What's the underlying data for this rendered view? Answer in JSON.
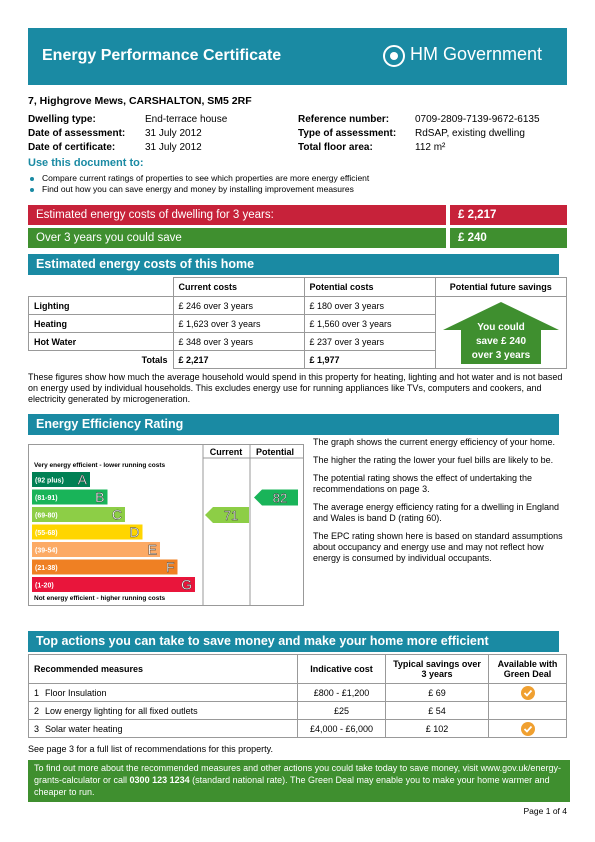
{
  "header": {
    "title": "Energy Performance Certificate",
    "logo": "HM Government"
  },
  "address": "7, Highgrove Mews, CARSHALTON, SM5 2RF",
  "details": [
    {
      "label": "Dwelling type:",
      "value": "End-terrace house"
    },
    {
      "label": "Date of assessment:",
      "value": "31 July 2012"
    },
    {
      "label": "Date of certificate:",
      "value": "31 July 2012"
    },
    {
      "label": "Reference number:",
      "value": "0709-2809-7139-9672-6135"
    },
    {
      "label": "Type of assessment:",
      "value": "RdSAP, existing dwelling"
    },
    {
      "label": "Total floor area:",
      "value": "112 m²"
    }
  ],
  "use": {
    "title": "Use this document to:",
    "bullets": [
      "Compare current ratings of properties to see which properties are more energy efficient",
      "Find out how you can save energy and money by installing improvement measures"
    ]
  },
  "summary": [
    {
      "label": "Estimated energy costs of dwelling for 3 years:",
      "value": "£ 2,217"
    },
    {
      "label": "Over 3 years you could save",
      "value": "£ 240"
    }
  ],
  "estimated": {
    "title": "Estimated energy costs of this home",
    "headers": [
      "Current costs",
      "Potential costs",
      "Potential future savings"
    ],
    "rows": [
      [
        "Lighting",
        "£ 246 over 3 years",
        "£ 180 over 3 years"
      ],
      [
        "Heating",
        "£ 1,623 over 3 years",
        "£ 1,560 over 3 years"
      ],
      [
        "Hot Water",
        "£ 348 over 3 years",
        "£ 237 over 3 years"
      ]
    ],
    "totals": [
      "Totals",
      "£ 2,217",
      "£ 1,977"
    ],
    "savings_badge": [
      "You could",
      "save £ 240",
      "over 3 years"
    ],
    "note": "These figures show how much the average household would spend in this property for heating, lighting and hot water and is not based on energy used by individual households. This excludes energy use for running appliances like TVs, computers and cookers, and electricity generated by microgeneration."
  },
  "rating": {
    "title": "Energy Efficiency Rating",
    "columns": [
      "Current",
      "Potential"
    ],
    "top_note": "Very energy efficient - lower running costs",
    "bottom_note": "Not energy efficient - higher running costs",
    "bands": [
      {
        "range": "(92 plus)",
        "letter": "A"
      },
      {
        "range": "(81-91)",
        "letter": "B"
      },
      {
        "range": "(69-80)",
        "letter": "C"
      },
      {
        "range": "(55-68)",
        "letter": "D"
      },
      {
        "range": "(39-54)",
        "letter": "E"
      },
      {
        "range": "(21-38)",
        "letter": "F"
      },
      {
        "range": "(1-20)",
        "letter": "G"
      }
    ],
    "current": 71,
    "potential": 82,
    "paragraphs": [
      "The graph shows the current energy efficiency of your home.",
      "The higher the rating the lower your fuel bills are likely to be.",
      "The potential rating shows the effect of undertaking the recommendations on page 3.",
      "The average energy efficiency rating for a dwelling in England and Wales is band D (rating 60).",
      "The EPC rating shown here is based on standard assumptions about occupancy and energy use and may not reflect how energy is consumed by individual occupants."
    ]
  },
  "actions": {
    "title": "Top actions you can take to save money and make your home more efficient",
    "headers": [
      "Recommended measures",
      "Indicative cost",
      "Typical savings over 3 years",
      "Available with Green Deal"
    ],
    "rows": [
      [
        "1",
        "Floor Insulation",
        "£800 - £1,200",
        "£ 69"
      ],
      [
        "2",
        "Low energy lighting for all fixed outlets",
        "£25",
        "£ 54"
      ],
      [
        "3",
        "Solar water heating",
        "£4,000 - £6,000",
        "£ 102"
      ]
    ],
    "footnote": "See page 3 for a full list of recommendations for this property."
  },
  "footer": {
    "text_before": "To find out more about the recommended measures and other actions you could take today to save money, visit www.gov.uk/energy-grants-calculator or call ",
    "phone": "0300 123 1234",
    "text_after": " (standard national rate). The Green Deal may enable you to make your home warmer and cheaper to run."
  },
  "page": "Page 1 of 4"
}
